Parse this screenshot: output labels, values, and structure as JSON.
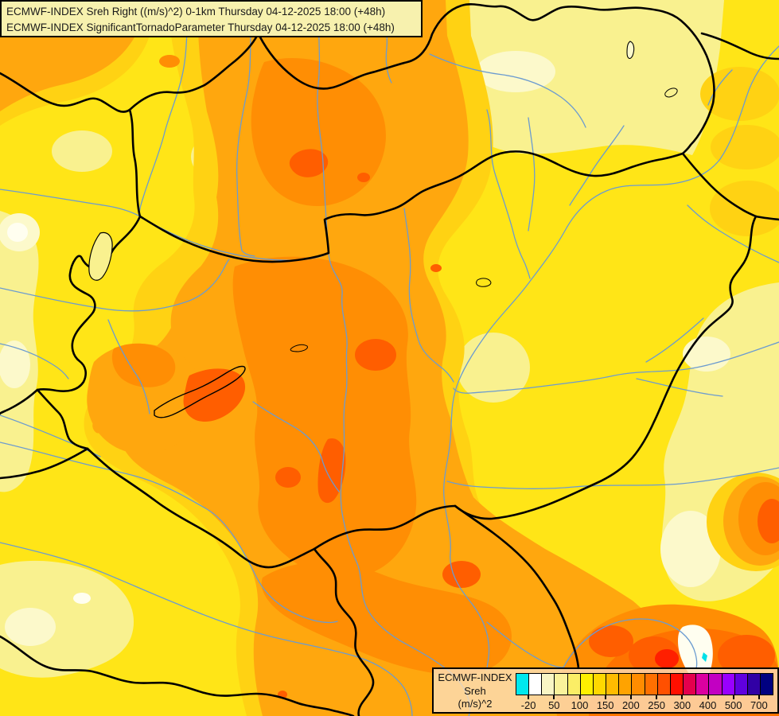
{
  "title_bar": {
    "line1": "ECMWF-INDEX Sreh Right ((m/s)^2) 0-1km Thursday 04-12-2025 18:00 (+48h)",
    "line2": "ECMWF-INDEX SignificantTornadoParameter Thursday 04-12-2025 18:00 (+48h)"
  },
  "legend": {
    "product": "ECMWF-INDEX",
    "parameter": "Sreh",
    "units": "(m/s)^2",
    "tick_labels": [
      "-20",
      "50",
      "100",
      "150",
      "200",
      "250",
      "300",
      "400",
      "500",
      "700"
    ],
    "swatch_colors": [
      "#00E8EE",
      "#FFFFFF",
      "#F9F6C5",
      "#FAF29B",
      "#FBEE66",
      "#FFF000",
      "#FFD800",
      "#FFBB00",
      "#FFA300",
      "#FF8C00",
      "#FF7000",
      "#FF5000",
      "#FF0F00",
      "#E4004D",
      "#DB00A0",
      "#C200C2",
      "#9900FF",
      "#6000DF",
      "#3100A5",
      "#000080"
    ]
  },
  "map_palette": {
    "base_yellow": "#FFE517",
    "pale_yellow": "#F9F18F",
    "cream": "#FCF9CB",
    "near_white": "#FFFEF0",
    "gold": "#FFD213",
    "orange": "#FFA70E",
    "dark_orange": "#FF8E04",
    "deep_orange": "#FF7300",
    "red_orange": "#FF5E00",
    "red": "#FF1F00",
    "cyan_spot": "#00E0E8",
    "river_blue": "#6B9BD0",
    "border_black": "#000000"
  }
}
